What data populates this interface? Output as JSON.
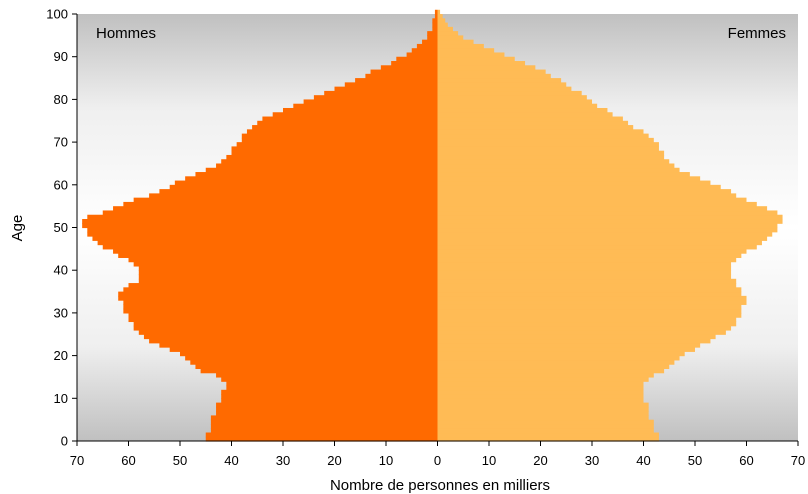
{
  "chart_data": {
    "type": "bar",
    "orientation": "horizontal-pyramid",
    "xlabel": "Nombre de personnes en milliers",
    "ylabel": "Age",
    "legend_left": "Hommes",
    "legend_right": "Femmes",
    "x_ticks": [
      70,
      60,
      50,
      40,
      30,
      20,
      10,
      0,
      10,
      20,
      30,
      40,
      50,
      60,
      70
    ],
    "y_ticks": [
      0,
      10,
      20,
      30,
      40,
      50,
      60,
      70,
      80,
      90,
      100
    ],
    "xlim": [
      0,
      70
    ],
    "ylim": [
      0,
      100
    ],
    "grid": false,
    "colors": {
      "hommes": "#ff6a00",
      "femmes": "#ffbb55",
      "background_edge": "#c0c0c0",
      "background_center": "#ffffff"
    },
    "series": [
      {
        "name": "Hommes",
        "ages": [
          0,
          1,
          2,
          3,
          4,
          5,
          6,
          7,
          8,
          9,
          10,
          11,
          12,
          13,
          14,
          15,
          16,
          17,
          18,
          19,
          20,
          21,
          22,
          23,
          24,
          25,
          26,
          27,
          28,
          29,
          30,
          31,
          32,
          33,
          34,
          35,
          36,
          37,
          38,
          39,
          40,
          41,
          42,
          43,
          44,
          45,
          46,
          47,
          48,
          49,
          50,
          51,
          52,
          53,
          54,
          55,
          56,
          57,
          58,
          59,
          60,
          61,
          62,
          63,
          64,
          65,
          66,
          67,
          68,
          69,
          70,
          71,
          72,
          73,
          74,
          75,
          76,
          77,
          78,
          79,
          80,
          81,
          82,
          83,
          84,
          85,
          86,
          87,
          88,
          89,
          90,
          91,
          92,
          93,
          94,
          95,
          96,
          97,
          98,
          99,
          100
        ],
        "values": [
          45,
          45,
          44,
          44,
          44,
          44,
          43,
          43,
          43,
          42,
          42,
          42,
          41,
          41,
          42,
          43,
          46,
          47,
          48,
          49,
          50,
          52,
          54,
          56,
          57,
          58,
          59,
          59,
          60,
          60,
          61,
          61,
          61,
          62,
          62,
          61,
          60,
          58,
          58,
          58,
          58,
          59,
          60,
          62,
          63,
          65,
          66,
          67,
          68,
          68,
          69,
          69,
          68,
          65,
          63,
          61,
          59,
          56,
          54,
          52,
          51,
          49,
          47,
          45,
          43,
          42,
          41,
          40,
          40,
          39,
          38,
          38,
          37,
          36,
          35,
          34,
          32,
          30,
          28,
          26,
          24,
          22,
          20,
          18,
          16,
          14,
          13,
          11,
          9,
          8,
          6,
          5,
          4,
          3,
          2,
          2,
          1,
          1,
          1,
          0.5,
          0.5
        ]
      },
      {
        "name": "Femmes",
        "ages": [
          0,
          1,
          2,
          3,
          4,
          5,
          6,
          7,
          8,
          9,
          10,
          11,
          12,
          13,
          14,
          15,
          16,
          17,
          18,
          19,
          20,
          21,
          22,
          23,
          24,
          25,
          26,
          27,
          28,
          29,
          30,
          31,
          32,
          33,
          34,
          35,
          36,
          37,
          38,
          39,
          40,
          41,
          42,
          43,
          44,
          45,
          46,
          47,
          48,
          49,
          50,
          51,
          52,
          53,
          54,
          55,
          56,
          57,
          58,
          59,
          60,
          61,
          62,
          63,
          64,
          65,
          66,
          67,
          68,
          69,
          70,
          71,
          72,
          73,
          74,
          75,
          76,
          77,
          78,
          79,
          80,
          81,
          82,
          83,
          84,
          85,
          86,
          87,
          88,
          89,
          90,
          91,
          92,
          93,
          94,
          95,
          96,
          97,
          98,
          99,
          100
        ],
        "values": [
          43,
          43,
          42,
          42,
          42,
          41,
          41,
          41,
          41,
          40,
          40,
          40,
          40,
          40,
          41,
          42,
          44,
          45,
          46,
          47,
          48,
          50,
          51,
          53,
          54,
          56,
          57,
          58,
          58,
          59,
          59,
          59,
          60,
          60,
          59,
          59,
          58,
          58,
          57,
          57,
          57,
          57,
          58,
          59,
          60,
          62,
          63,
          64,
          65,
          66,
          66,
          67,
          67,
          66,
          64,
          62,
          60,
          58,
          57,
          55,
          53,
          51,
          49,
          47,
          46,
          45,
          44,
          44,
          43,
          43,
          42,
          41,
          40,
          38,
          37,
          36,
          34,
          33,
          31,
          30,
          29,
          28,
          26,
          25,
          24,
          22,
          21,
          19,
          17,
          15,
          13,
          11,
          9,
          7,
          5,
          4,
          3,
          2,
          1.5,
          1,
          0.5
        ]
      }
    ]
  }
}
